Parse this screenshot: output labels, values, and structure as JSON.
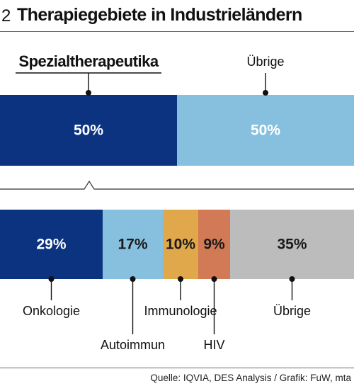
{
  "figure": {
    "number": "2",
    "title": "Therapiegebiete in Industrieländern",
    "source": "Quelle: IQVIA, DES Analysis / Grafik: FuW, mta"
  },
  "chart_data": [
    {
      "type": "bar",
      "orientation": "horizontal-stacked",
      "unit": "%",
      "segments": [
        {
          "name": "Spezialtherapeutika",
          "value": 50,
          "label": "50%",
          "color": "#0b3380",
          "label_color": "#ffffff",
          "name_bold": true
        },
        {
          "name": "Übrige",
          "value": 50,
          "label": "50%",
          "color": "#86c0de",
          "label_color": "#ffffff",
          "name_bold": false
        }
      ]
    },
    {
      "type": "bar",
      "orientation": "horizontal-stacked",
      "unit": "%",
      "breakdown_of": "Spezialtherapeutika",
      "segments": [
        {
          "name": "Onkologie",
          "value": 29,
          "label": "29%",
          "color": "#0b3380",
          "label_color": "#ffffff"
        },
        {
          "name": "Autoimmun",
          "value": 17,
          "label": "17%",
          "color": "#86c0de",
          "label_color": "#1a1a1a"
        },
        {
          "name": "Immunologie",
          "value": 10,
          "label": "10%",
          "color": "#e0a84b",
          "label_color": "#1a1a1a"
        },
        {
          "name": "HIV",
          "value": 9,
          "label": "9%",
          "color": "#d27a55",
          "label_color": "#1a1a1a"
        },
        {
          "name": "Übrige",
          "value": 35,
          "label": "35%",
          "color": "#bcbcbc",
          "label_color": "#1a1a1a"
        }
      ]
    }
  ]
}
